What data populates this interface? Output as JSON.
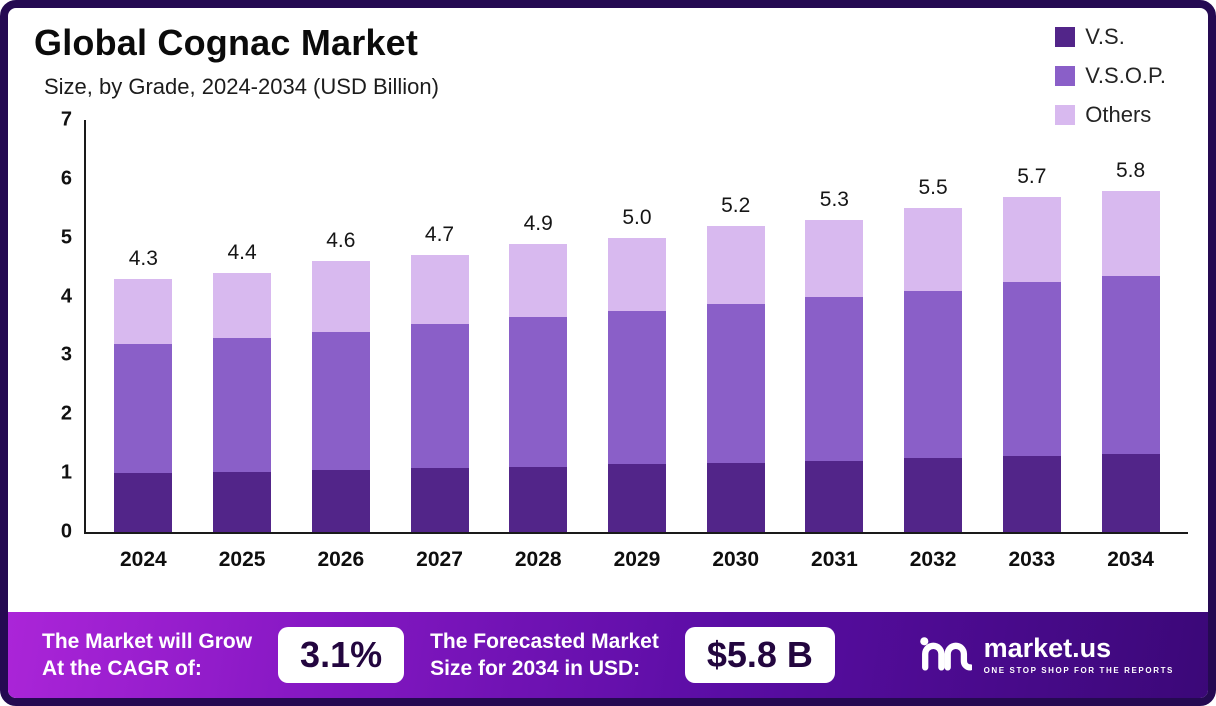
{
  "title": "Global Cognac Market",
  "subtitle": "Size, by Grade, 2024-2034 (USD Billion)",
  "legend": [
    {
      "label": "V.S.",
      "color": "#522589"
    },
    {
      "label": "V.S.O.P.",
      "color": "#8a5fc8"
    },
    {
      "label": "Others",
      "color": "#d8b9ef"
    }
  ],
  "chart_data": {
    "type": "bar",
    "stacked": true,
    "title": "Global Cognac Market Size, by Grade, 2024-2034 (USD Billion)",
    "xlabel": "",
    "ylabel": "USD Billion",
    "ylim": [
      0,
      7
    ],
    "yticks": [
      0,
      1,
      2,
      3,
      4,
      5,
      6,
      7
    ],
    "grid": false,
    "legend_position": "top-right",
    "categories": [
      "2024",
      "2025",
      "2026",
      "2027",
      "2028",
      "2029",
      "2030",
      "2031",
      "2032",
      "2033",
      "2034"
    ],
    "series": [
      {
        "name": "V.S.",
        "color": "#522589",
        "values": [
          1.0,
          1.02,
          1.05,
          1.08,
          1.1,
          1.15,
          1.18,
          1.2,
          1.25,
          1.3,
          1.32
        ]
      },
      {
        "name": "V.S.O.P.",
        "color": "#8a5fc8",
        "values": [
          2.2,
          2.28,
          2.35,
          2.45,
          2.55,
          2.6,
          2.7,
          2.8,
          2.85,
          2.95,
          3.03
        ]
      },
      {
        "name": "Others",
        "color": "#d8b9ef",
        "values": [
          1.1,
          1.1,
          1.2,
          1.17,
          1.25,
          1.25,
          1.32,
          1.3,
          1.4,
          1.45,
          1.45
        ]
      }
    ],
    "totals_display": [
      "4.3",
      "4.4",
      "4.6",
      "4.7",
      "4.9",
      "5.0",
      "5.2",
      "5.3",
      "5.5",
      "5.7",
      "5.8"
    ]
  },
  "footer": {
    "cagr_label_line1": "The Market will Grow",
    "cagr_label_line2": "At the CAGR of:",
    "cagr_value": "3.1%",
    "forecast_label_line1": "The Forecasted Market",
    "forecast_label_line2": "Size for 2034 in USD:",
    "forecast_value": "$5.8 B",
    "brand_name": "market.us",
    "brand_tagline": "ONE STOP SHOP FOR THE REPORTS"
  },
  "colors": {
    "frame_border": "#250a52",
    "footer_gradient_start": "#ab25d8",
    "footer_gradient_end": "#3b0878"
  }
}
